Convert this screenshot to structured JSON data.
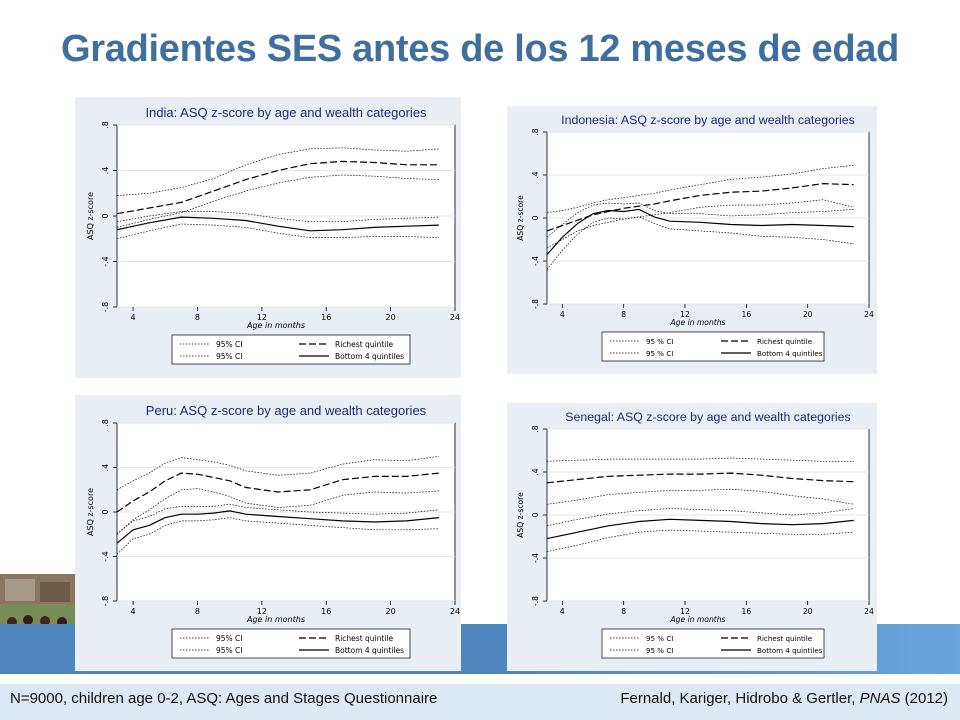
{
  "slide": {
    "title": "Gradientes SES antes de los 12 meses de edad",
    "footer_left": "N=9000, children age 0-2, ASQ: Ages and Stages Questionnaire",
    "footer_authors": "Fernald, Kariger, Hidrobo & Gertler, ",
    "footer_journal": "PNAS",
    "footer_year": " (2012)"
  },
  "colors": {
    "title": "#3f6f9f",
    "band": "#4f86bd",
    "panel_bg": "#e8eef3",
    "plot_bg": "#ffffff",
    "chart_title": "#1e2a78"
  },
  "chart_data": [
    {
      "type": "line",
      "title": "India: ASQ z-score by age and wealth categories",
      "xlabel": "Age in months",
      "ylabel": "ASQ z-score",
      "xlim": [
        3,
        24
      ],
      "ylim": [
        -0.8,
        0.8
      ],
      "xticks": [
        4,
        8,
        12,
        16,
        20,
        24
      ],
      "yticks": [
        -0.8,
        -0.4,
        0,
        0.4,
        0.8
      ],
      "yticklabels": [
        "-.8",
        "-.4",
        "0",
        ".4",
        ".8"
      ],
      "grid": "horizontal",
      "legend": "bottom",
      "legend_labels": [
        "95% CI",
        "Richest quintile",
        "95% CI",
        "Bottom 4 quintiles"
      ],
      "x": [
        3,
        5,
        7,
        9,
        11,
        13,
        15,
        17,
        19,
        21,
        23
      ],
      "series": [
        {
          "name": "Richest quintile",
          "style": "dashed",
          "values": [
            0.02,
            0.07,
            0.12,
            0.22,
            0.32,
            0.4,
            0.46,
            0.48,
            0.47,
            0.45,
            0.45
          ]
        },
        {
          "name": "95% CI",
          "style": "dotted",
          "values": [
            0.18,
            0.2,
            0.25,
            0.33,
            0.45,
            0.54,
            0.59,
            0.6,
            0.58,
            0.57,
            0.59
          ]
        },
        {
          "name": "95% CI",
          "style": "dotted",
          "values": [
            -0.1,
            -0.03,
            0.03,
            0.13,
            0.22,
            0.29,
            0.34,
            0.36,
            0.35,
            0.33,
            0.32
          ]
        },
        {
          "name": "Bottom 4 quintiles",
          "style": "solid",
          "values": [
            -0.12,
            -0.06,
            -0.01,
            -0.02,
            -0.04,
            -0.09,
            -0.13,
            -0.12,
            -0.1,
            -0.09,
            -0.08
          ]
        },
        {
          "name": "95% CI",
          "style": "dotted",
          "values": [
            -0.05,
            0.0,
            0.04,
            0.04,
            0.02,
            -0.02,
            -0.05,
            -0.05,
            -0.03,
            -0.02,
            -0.01
          ]
        },
        {
          "name": "95% CI",
          "style": "dotted",
          "values": [
            -0.2,
            -0.13,
            -0.07,
            -0.08,
            -0.1,
            -0.15,
            -0.19,
            -0.19,
            -0.18,
            -0.18,
            -0.19
          ]
        }
      ]
    },
    {
      "type": "line",
      "title": "Indonesia: ASQ z-score by age and wealth categories",
      "xlabel": "Age in months",
      "ylabel": "ASQ z-score",
      "xlim": [
        3,
        24
      ],
      "ylim": [
        -0.8,
        0.8
      ],
      "xticks": [
        4,
        8,
        12,
        16,
        20,
        24
      ],
      "yticks": [
        -0.8,
        -0.4,
        0,
        0.4,
        0.8
      ],
      "yticklabels": [
        "-.8",
        "-.4",
        "0",
        ".4",
        ".8"
      ],
      "grid": "horizontal",
      "legend": "bottom",
      "legend_labels": [
        "95 % CI",
        "Richest quintile",
        "95 % CI",
        "Bottom 4 quintiles"
      ],
      "x": [
        3,
        4,
        5,
        6,
        7,
        8,
        9,
        10,
        11,
        13,
        15,
        17,
        19,
        21,
        23
      ],
      "series": [
        {
          "name": "Richest quintile",
          "style": "dashed",
          "values": [
            -0.12,
            -0.07,
            -0.02,
            0.03,
            0.06,
            0.09,
            0.11,
            0.13,
            0.16,
            0.21,
            0.24,
            0.25,
            0.28,
            0.32,
            0.31
          ]
        },
        {
          "name": "95% CI",
          "style": "dotted",
          "values": [
            0.05,
            0.07,
            0.1,
            0.14,
            0.17,
            0.19,
            0.21,
            0.23,
            0.26,
            0.31,
            0.36,
            0.38,
            0.41,
            0.46,
            0.49
          ]
        },
        {
          "name": "95% CI",
          "style": "dotted",
          "values": [
            -0.28,
            -0.2,
            -0.12,
            -0.07,
            -0.04,
            -0.01,
            0.01,
            0.03,
            0.05,
            0.1,
            0.12,
            0.12,
            0.14,
            0.17,
            0.1
          ]
        },
        {
          "name": "Bottom 4 quintiles",
          "style": "solid",
          "values": [
            -0.34,
            -0.18,
            -0.05,
            0.04,
            0.07,
            0.06,
            0.08,
            0.01,
            -0.03,
            -0.04,
            -0.06,
            -0.07,
            -0.06,
            -0.07,
            -0.08
          ]
        },
        {
          "name": "95% CI",
          "style": "dotted",
          "values": [
            -0.18,
            -0.06,
            0.05,
            0.12,
            0.14,
            0.13,
            0.14,
            0.07,
            0.04,
            0.04,
            0.02,
            0.03,
            0.05,
            0.06,
            0.08
          ]
        },
        {
          "name": "95% CI",
          "style": "dotted",
          "values": [
            -0.48,
            -0.3,
            -0.15,
            -0.04,
            0.0,
            -0.01,
            0.01,
            -0.05,
            -0.1,
            -0.12,
            -0.14,
            -0.17,
            -0.18,
            -0.2,
            -0.24
          ]
        }
      ]
    },
    {
      "type": "line",
      "title": "Peru: ASQ z-score by age and wealth categories",
      "xlabel": "Age in months",
      "ylabel": "ASQ z-score",
      "xlim": [
        3,
        24
      ],
      "ylim": [
        -0.8,
        0.8
      ],
      "xticks": [
        4,
        8,
        12,
        16,
        20,
        24
      ],
      "yticks": [
        -0.8,
        -0.4,
        0,
        0.4,
        0.8
      ],
      "yticklabels": [
        "-.8",
        "-.4",
        "0",
        ".4",
        ".8"
      ],
      "grid": "horizontal",
      "legend": "bottom",
      "legend_labels": [
        "95% CI",
        "Richest quintile",
        "95% CI",
        "Bottom 4 quintiles"
      ],
      "x": [
        3,
        4,
        5,
        6,
        7,
        8,
        9,
        10,
        11,
        13,
        15,
        17,
        19,
        21,
        23
      ],
      "series": [
        {
          "name": "Richest quintile",
          "style": "dashed",
          "values": [
            0.0,
            0.1,
            0.18,
            0.28,
            0.35,
            0.34,
            0.31,
            0.28,
            0.22,
            0.18,
            0.2,
            0.29,
            0.32,
            0.32,
            0.35
          ]
        },
        {
          "name": "95% CI",
          "style": "dotted",
          "values": [
            0.2,
            0.28,
            0.35,
            0.44,
            0.49,
            0.47,
            0.45,
            0.42,
            0.37,
            0.33,
            0.35,
            0.43,
            0.47,
            0.46,
            0.5
          ]
        },
        {
          "name": "95% CI",
          "style": "dotted",
          "values": [
            -0.2,
            -0.07,
            0.02,
            0.12,
            0.2,
            0.21,
            0.18,
            0.14,
            0.08,
            0.04,
            0.06,
            0.15,
            0.18,
            0.17,
            0.19
          ]
        },
        {
          "name": "Bottom 4 quintiles",
          "style": "solid",
          "values": [
            -0.28,
            -0.16,
            -0.12,
            -0.05,
            -0.02,
            -0.02,
            -0.01,
            0.01,
            -0.02,
            -0.04,
            -0.06,
            -0.08,
            -0.09,
            -0.08,
            -0.05
          ]
        },
        {
          "name": "95% CI",
          "style": "dotted",
          "values": [
            -0.2,
            -0.08,
            -0.04,
            0.03,
            0.05,
            0.05,
            0.05,
            0.07,
            0.04,
            0.02,
            0.0,
            -0.01,
            -0.02,
            -0.01,
            0.02
          ]
        },
        {
          "name": "95% CI",
          "style": "dotted",
          "values": [
            -0.38,
            -0.24,
            -0.2,
            -0.12,
            -0.08,
            -0.08,
            -0.07,
            -0.05,
            -0.08,
            -0.1,
            -0.12,
            -0.14,
            -0.16,
            -0.16,
            -0.15
          ]
        }
      ]
    },
    {
      "type": "line",
      "title": "Senegal: ASQ z-score by age and wealth categories",
      "xlabel": "Age in months",
      "ylabel": "ASQ z-score",
      "xlim": [
        3,
        24
      ],
      "ylim": [
        -0.8,
        0.8
      ],
      "xticks": [
        4,
        8,
        12,
        16,
        20,
        24
      ],
      "yticks": [
        -0.8,
        -0.4,
        0,
        0.4,
        0.8
      ],
      "yticklabels": [
        "-.8",
        "-.4",
        "0",
        ".4",
        ".8"
      ],
      "grid": "horizontal",
      "legend": "bottom",
      "legend_labels": [
        "95 % CI",
        "Richest quintile",
        "95 % CI",
        "Bottom 4 quintiles"
      ],
      "x": [
        3,
        5,
        7,
        9,
        11,
        13,
        15,
        17,
        19,
        21,
        23
      ],
      "series": [
        {
          "name": "Richest quintile",
          "style": "dashed",
          "values": [
            0.3,
            0.33,
            0.36,
            0.37,
            0.38,
            0.38,
            0.39,
            0.37,
            0.34,
            0.32,
            0.31
          ]
        },
        {
          "name": "95% CI",
          "style": "dotted",
          "values": [
            0.5,
            0.51,
            0.52,
            0.52,
            0.52,
            0.52,
            0.53,
            0.52,
            0.51,
            0.5,
            0.5
          ]
        },
        {
          "name": "95% CI",
          "style": "dotted",
          "values": [
            0.1,
            0.14,
            0.19,
            0.21,
            0.23,
            0.23,
            0.24,
            0.22,
            0.18,
            0.15,
            0.1
          ]
        },
        {
          "name": "Bottom 4 quintiles",
          "style": "solid",
          "values": [
            -0.22,
            -0.16,
            -0.1,
            -0.06,
            -0.04,
            -0.05,
            -0.06,
            -0.08,
            -0.09,
            -0.08,
            -0.05
          ]
        },
        {
          "name": "95% CI",
          "style": "dotted",
          "values": [
            -0.1,
            -0.04,
            0.01,
            0.04,
            0.06,
            0.05,
            0.04,
            0.02,
            0.0,
            0.02,
            0.06
          ]
        },
        {
          "name": "95% CI",
          "style": "dotted",
          "values": [
            -0.34,
            -0.28,
            -0.21,
            -0.16,
            -0.14,
            -0.15,
            -0.16,
            -0.17,
            -0.18,
            -0.18,
            -0.16
          ]
        }
      ]
    }
  ]
}
